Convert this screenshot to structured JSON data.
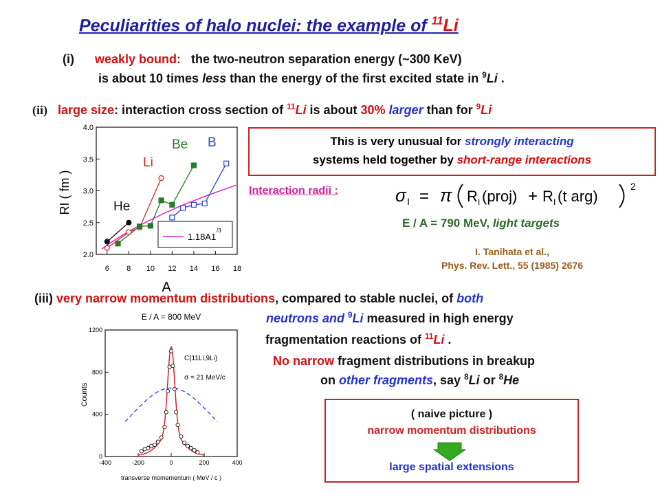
{
  "title": {
    "main": "Peculiarities of halo nuclei: the example of ",
    "super": "11",
    "nucleus": "Li"
  },
  "item1": {
    "marker": "(i)",
    "label": "weakly bound:",
    "line1": "the two-neutron separation energy (~300 KeV)",
    "line2_pre": "is about 10 times ",
    "line2_em": "less",
    "line2_post": " than the energy of the first excited state in ",
    "line2_sup": "9",
    "line2_nuc": "Li",
    "line2_end": " ."
  },
  "item2": {
    "marker": "(ii)",
    "label": "large size",
    "text_a": ": interaction cross section of ",
    "sup_a": "11",
    "nuc_a": "Li",
    "text_b": " is about ",
    "percent": "30%",
    "larger": "larger",
    "text_c": " than for ",
    "sup_b": "9",
    "nuc_b": "Li"
  },
  "box_unusual": {
    "l1_pre": "This is very unusual for ",
    "l1_em": "strongly interacting",
    "l2_pre": "systems  held together by ",
    "l2_em": "short-range interactions"
  },
  "interaction_radii_label": "Interaction radii :",
  "formula": {
    "lhs": "σI = π",
    "term1": "RI(proj)",
    "plus": "+",
    "term2": "RI(t arg)",
    "power": "2"
  },
  "energy_line": {
    "pre": "E / A = 790 MeV, ",
    "em": "light targets"
  },
  "reference": {
    "l1": "I. Tanihata et al.,",
    "l2": "Phys. Rev. Lett., 55 (1985) 2676"
  },
  "item3": {
    "marker": "(iii)",
    "l1_red": "very narrow momentum distributions",
    "l1_post": ", compared to stable nuclei, of ",
    "l1_em": "both",
    "l2_em": "neutrons and ",
    "l2_sup": "9",
    "l2_nuc": "Li",
    "l2_post": "  measured in high energy",
    "l3_pre": "fragmentation reactions of ",
    "l3_sup": "11",
    "l3_nuc": "Li",
    "l3_end": " ."
  },
  "no_narrow": {
    "l1_red": "No narrow",
    "l1_post": " fragment distributions in  breakup",
    "l2_pre": "on ",
    "l2_em": "other fragments",
    "l2_mid": ", say ",
    "l2_sup1": "8",
    "l2_nuc1": "Li",
    "l2_or": " or ",
    "l2_sup2": "8",
    "l2_nuc2": "He"
  },
  "box_naive": {
    "l1": "( naive picture )",
    "l2": "narrow momentum distributions",
    "l3": "large spatial extensions"
  },
  "colors": {
    "title": "#1f1f9e",
    "red": "#d01010",
    "blue": "#2233cc",
    "green": "#2a6a2a",
    "magenta": "#cc2299",
    "arrow": "#33aa22"
  },
  "chart_data": [
    {
      "type": "scatter",
      "xlabel": "A",
      "ylabel": "RI ( fm )",
      "xlim": [
        5,
        18
      ],
      "ylim": [
        2.0,
        4.0
      ],
      "xticks": [
        "6",
        "8",
        "10",
        "12",
        "14",
        "16",
        "18"
      ],
      "yticks": [
        "2.0",
        "2.5",
        "3.0",
        "3.5",
        "4.0"
      ],
      "labels": [
        "He",
        "Li",
        "Be",
        "B"
      ],
      "legend": "1.18A1/3",
      "fit_curve": {
        "name": "1.18A1/3",
        "coef": 1.18,
        "color": "#dd22cc"
      },
      "series": [
        {
          "name": "He",
          "color": "#111111",
          "x": [
            6,
            8
          ],
          "y": [
            2.2,
            2.5
          ]
        },
        {
          "name": "Li",
          "color": "#e02020",
          "x": [
            6,
            8,
            9,
            11
          ],
          "y": [
            2.1,
            2.35,
            2.42,
            3.2
          ]
        },
        {
          "name": "Be",
          "color": "#2a7a2a",
          "x": [
            7,
            9,
            10,
            11,
            12,
            14
          ],
          "y": [
            2.17,
            2.44,
            2.45,
            2.85,
            2.78,
            3.4
          ]
        },
        {
          "name": "B",
          "color": "#2244cc",
          "x": [
            12,
            13,
            14,
            15,
            17
          ],
          "y": [
            2.58,
            2.73,
            2.78,
            2.8,
            3.43
          ]
        }
      ]
    },
    {
      "type": "scatter",
      "title": "E / A = 800 MeV",
      "xlabel": "transverse momementum ( MeV / c )",
      "ylabel": "Counts",
      "xlim": [
        -400,
        400
      ],
      "ylim": [
        0,
        1200
      ],
      "xticks": [
        "-400",
        "-200",
        "0",
        "200",
        "400"
      ],
      "yticks": [
        "0",
        "400",
        "800",
        "1200"
      ],
      "annotation_1": "C(11Li,9Li)",
      "annotation_2": "σ = 21 MeV/c",
      "sigma_narrow": 21,
      "sigma_wide": 240,
      "peak": 1000,
      "wide_peak": 650,
      "points_x": [
        -180,
        -160,
        -140,
        -120,
        -100,
        -80,
        -60,
        -40,
        -30,
        -20,
        -10,
        0,
        10,
        20,
        30,
        40,
        60,
        80,
        100,
        120,
        140,
        160
      ],
      "points_y": [
        50,
        70,
        80,
        100,
        110,
        140,
        180,
        280,
        420,
        620,
        850,
        1000,
        860,
        640,
        420,
        300,
        190,
        130,
        100,
        80,
        60,
        40
      ]
    }
  ]
}
